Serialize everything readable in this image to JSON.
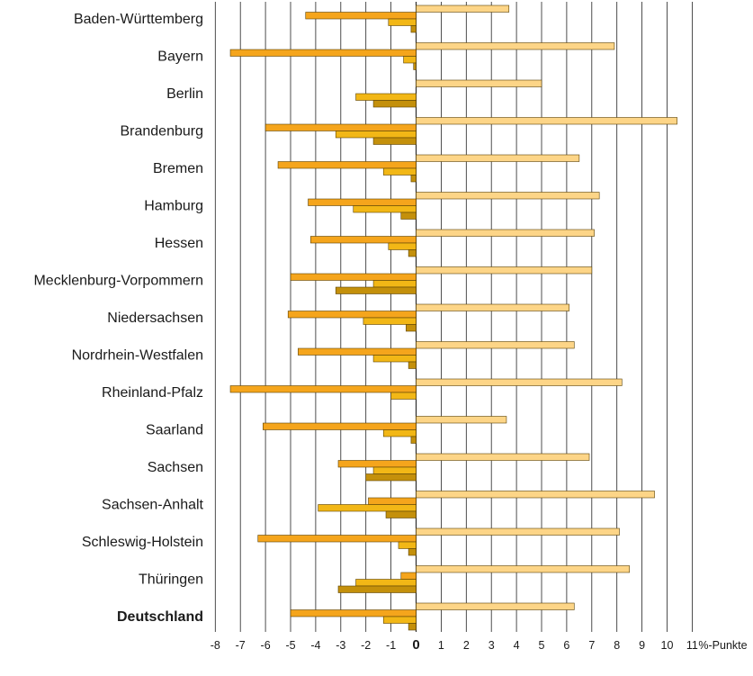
{
  "chart_data": {
    "type": "bar",
    "orientation": "horizontal",
    "unit_label": "%-Punkte",
    "xlim": [
      -8,
      11
    ],
    "x_ticks": [
      -8,
      -7,
      -6,
      -5,
      -4,
      -3,
      -2,
      -1,
      0,
      1,
      2,
      3,
      4,
      5,
      6,
      7,
      8,
      9,
      10,
      11
    ],
    "grid": "vertical",
    "colors": [
      "#fdd587",
      "#f5a51c",
      "#f2b716",
      "#c4900b"
    ],
    "categories": [
      "Baden-Württemberg",
      "Bayern",
      "Berlin",
      "Brandenburg",
      "Bremen",
      "Hamburg",
      "Hessen",
      "Mecklenburg-Vorpommern",
      "Niedersachsen",
      "Nordrhein-Westfalen",
      "Rheinland-Pfalz",
      "Saarland",
      "Sachsen",
      "Sachsen-Anhalt",
      "Schleswig-Holstein",
      "Thüringen",
      "Deutschland"
    ],
    "bold_categories": [
      "Deutschland"
    ],
    "series": [
      {
        "values": [
          3.7,
          7.9,
          5.0,
          10.4,
          6.5,
          7.3,
          7.1,
          7.0,
          6.1,
          6.3,
          8.2,
          3.6,
          6.9,
          9.5,
          8.1,
          8.5,
          6.3
        ]
      },
      {
        "values": [
          -4.4,
          -7.4,
          0,
          -6.0,
          -5.5,
          -4.3,
          -4.2,
          -5.0,
          -5.1,
          -4.7,
          -7.4,
          -6.1,
          -3.1,
          -1.9,
          -6.3,
          -0.6,
          -5.0
        ]
      },
      {
        "values": [
          -1.1,
          -0.5,
          -2.4,
          -3.2,
          -1.3,
          -2.5,
          -1.1,
          -1.7,
          -2.1,
          -1.7,
          -1.0,
          -1.3,
          -1.7,
          -3.9,
          -0.7,
          -2.4,
          -1.3
        ]
      },
      {
        "values": [
          -0.2,
          -0.1,
          -1.7,
          -1.7,
          -0.2,
          -0.6,
          -0.3,
          -3.2,
          -0.4,
          -0.3,
          0,
          -0.2,
          -2.0,
          -1.2,
          -0.3,
          -3.1,
          -0.3
        ]
      }
    ]
  }
}
